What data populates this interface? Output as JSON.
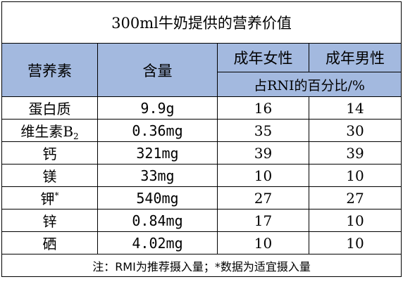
{
  "title": "300ml牛奶提供的营养价值",
  "header": {
    "nutrient": "营养素",
    "amount": "含量",
    "female": "成年女性",
    "male": "成年男性",
    "rni": "占RNI的百分比/%"
  },
  "rows": [
    {
      "name": "蛋白质",
      "sub": "",
      "sup": "",
      "amount": "9.9g",
      "female": "16",
      "male": "14"
    },
    {
      "name": "维生素B",
      "sub": "2",
      "sup": "",
      "amount": "0.36mg",
      "female": "35",
      "male": "30"
    },
    {
      "name": "钙",
      "sub": "",
      "sup": "",
      "amount": "321mg",
      "female": "39",
      "male": "39"
    },
    {
      "name": "镁",
      "sub": "",
      "sup": "",
      "amount": "33mg",
      "female": "10",
      "male": "10"
    },
    {
      "name": "钾",
      "sub": "",
      "sup": "*",
      "amount": "540mg",
      "female": "27",
      "male": "27"
    },
    {
      "name": "锌",
      "sub": "",
      "sup": "",
      "amount": "0.84mg",
      "female": "17",
      "male": "10"
    },
    {
      "name": "硒",
      "sub": "",
      "sup": "",
      "amount": "4.02mg",
      "female": "10",
      "male": "10"
    }
  ],
  "note": "注：RMI为推荐摄入量；*数据为适宜摄入量",
  "colors": {
    "header_bg": "#a3b9df",
    "border": "#000000"
  }
}
